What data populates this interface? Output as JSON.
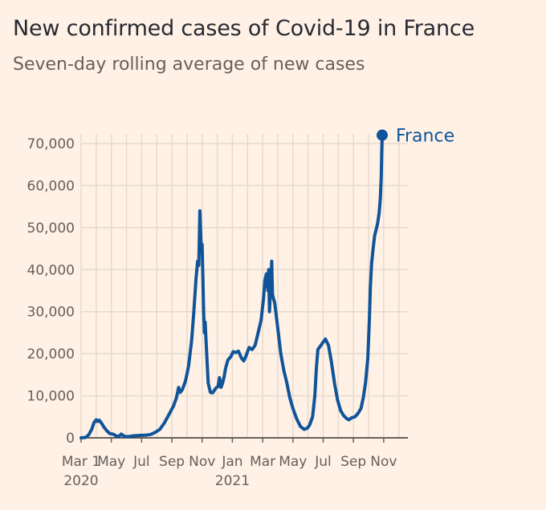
{
  "chart_data": {
    "type": "line",
    "title": "New confirmed cases of Covid-19 in France",
    "subtitle": "Seven-day rolling average of new cases",
    "xlabel": "",
    "ylabel": "",
    "ylim": [
      0,
      70000
    ],
    "y_ticks": [
      {
        "value": 0,
        "label": "0"
      },
      {
        "value": 10000,
        "label": "10,000"
      },
      {
        "value": 20000,
        "label": "20,000"
      },
      {
        "value": 30000,
        "label": "30,000"
      },
      {
        "value": 40000,
        "label": "40,000"
      },
      {
        "value": 50000,
        "label": "50,000"
      },
      {
        "value": 60000,
        "label": "60,000"
      },
      {
        "value": 70000,
        "label": "70,000"
      }
    ],
    "x_ticks": [
      {
        "month": 0,
        "label": "Mar 1",
        "year_label": "2020"
      },
      {
        "month": 2,
        "label": "May",
        "year_label": ""
      },
      {
        "month": 4,
        "label": "Jul",
        "year_label": ""
      },
      {
        "month": 6,
        "label": "Sep",
        "year_label": ""
      },
      {
        "month": 8,
        "label": "Nov",
        "year_label": ""
      },
      {
        "month": 10,
        "label": "Jan",
        "year_label": "2021"
      },
      {
        "month": 12,
        "label": "Mar",
        "year_label": ""
      },
      {
        "month": 14,
        "label": "May",
        "year_label": ""
      },
      {
        "month": 16,
        "label": "Jul",
        "year_label": ""
      },
      {
        "month": 18,
        "label": "Sep",
        "year_label": ""
      },
      {
        "month": 20,
        "label": "Nov",
        "year_label": ""
      }
    ],
    "xlim_months": [
      0,
      21.6
    ],
    "series": [
      {
        "name": "France",
        "color": "#0f5499",
        "points": [
          [
            0.0,
            0
          ],
          [
            0.3,
            100
          ],
          [
            0.5,
            700
          ],
          [
            0.7,
            2000
          ],
          [
            0.85,
            3600
          ],
          [
            1.0,
            4300
          ],
          [
            1.1,
            3900
          ],
          [
            1.2,
            4200
          ],
          [
            1.35,
            3500
          ],
          [
            1.5,
            2600
          ],
          [
            1.7,
            1700
          ],
          [
            1.9,
            1000
          ],
          [
            2.1,
            900
          ],
          [
            2.3,
            500
          ],
          [
            2.5,
            300
          ],
          [
            2.65,
            900
          ],
          [
            2.8,
            500
          ],
          [
            3.0,
            250
          ],
          [
            3.2,
            350
          ],
          [
            3.5,
            500
          ],
          [
            4.0,
            600
          ],
          [
            4.3,
            650
          ],
          [
            4.6,
            800
          ],
          [
            4.9,
            1300
          ],
          [
            5.2,
            2000
          ],
          [
            5.5,
            3500
          ],
          [
            5.8,
            5500
          ],
          [
            6.1,
            7500
          ],
          [
            6.3,
            9500
          ],
          [
            6.45,
            12000
          ],
          [
            6.55,
            10800
          ],
          [
            6.7,
            11500
          ],
          [
            6.9,
            13500
          ],
          [
            7.1,
            17000
          ],
          [
            7.3,
            23000
          ],
          [
            7.45,
            30000
          ],
          [
            7.6,
            38000
          ],
          [
            7.7,
            42000
          ],
          [
            7.78,
            41000
          ],
          [
            7.85,
            54000
          ],
          [
            7.95,
            44000
          ],
          [
            8.0,
            46000
          ],
          [
            8.05,
            38000
          ],
          [
            8.1,
            30000
          ],
          [
            8.15,
            25000
          ],
          [
            8.2,
            27500
          ],
          [
            8.3,
            20000
          ],
          [
            8.4,
            13000
          ],
          [
            8.55,
            10800
          ],
          [
            8.7,
            10700
          ],
          [
            8.9,
            11800
          ],
          [
            9.05,
            12200
          ],
          [
            9.15,
            14300
          ],
          [
            9.25,
            12000
          ],
          [
            9.35,
            13000
          ],
          [
            9.45,
            14500
          ],
          [
            9.55,
            16500
          ],
          [
            9.7,
            18500
          ],
          [
            9.9,
            19300
          ],
          [
            10.05,
            20500
          ],
          [
            10.2,
            20300
          ],
          [
            10.4,
            20600
          ],
          [
            10.6,
            19000
          ],
          [
            10.75,
            18300
          ],
          [
            10.9,
            19500
          ],
          [
            11.1,
            21500
          ],
          [
            11.3,
            21000
          ],
          [
            11.5,
            22000
          ],
          [
            11.7,
            25000
          ],
          [
            11.9,
            28000
          ],
          [
            12.05,
            33000
          ],
          [
            12.15,
            37500
          ],
          [
            12.25,
            39000
          ],
          [
            12.35,
            35000
          ],
          [
            12.4,
            40000
          ],
          [
            12.45,
            30000
          ],
          [
            12.55,
            38000
          ],
          [
            12.6,
            42000
          ],
          [
            12.65,
            34000
          ],
          [
            12.8,
            32000
          ],
          [
            13.0,
            26000
          ],
          [
            13.2,
            20000
          ],
          [
            13.4,
            16000
          ],
          [
            13.6,
            13000
          ],
          [
            13.8,
            9500
          ],
          [
            14.0,
            7000
          ],
          [
            14.25,
            4500
          ],
          [
            14.5,
            2700
          ],
          [
            14.75,
            2000
          ],
          [
            14.95,
            2300
          ],
          [
            15.1,
            3000
          ],
          [
            15.3,
            5000
          ],
          [
            15.45,
            10000
          ],
          [
            15.55,
            16500
          ],
          [
            15.65,
            21000
          ],
          [
            15.85,
            22000
          ],
          [
            16.0,
            22800
          ],
          [
            16.15,
            23500
          ],
          [
            16.35,
            22000
          ],
          [
            16.55,
            18000
          ],
          [
            16.75,
            13000
          ],
          [
            16.95,
            9000
          ],
          [
            17.15,
            6500
          ],
          [
            17.35,
            5300
          ],
          [
            17.55,
            4600
          ],
          [
            17.7,
            4300
          ],
          [
            17.9,
            4800
          ],
          [
            18.1,
            5000
          ],
          [
            18.3,
            5800
          ],
          [
            18.5,
            7000
          ],
          [
            18.65,
            9500
          ],
          [
            18.8,
            13000
          ],
          [
            18.95,
            19000
          ],
          [
            19.05,
            28000
          ],
          [
            19.12,
            36000
          ],
          [
            19.2,
            41500
          ],
          [
            19.3,
            45000
          ],
          [
            19.4,
            48000
          ],
          [
            19.5,
            49500
          ],
          [
            19.6,
            51000
          ],
          [
            19.7,
            53500
          ],
          [
            19.78,
            57000
          ],
          [
            19.84,
            62000
          ],
          [
            19.87,
            68000
          ],
          [
            19.9,
            72000
          ]
        ]
      }
    ]
  }
}
